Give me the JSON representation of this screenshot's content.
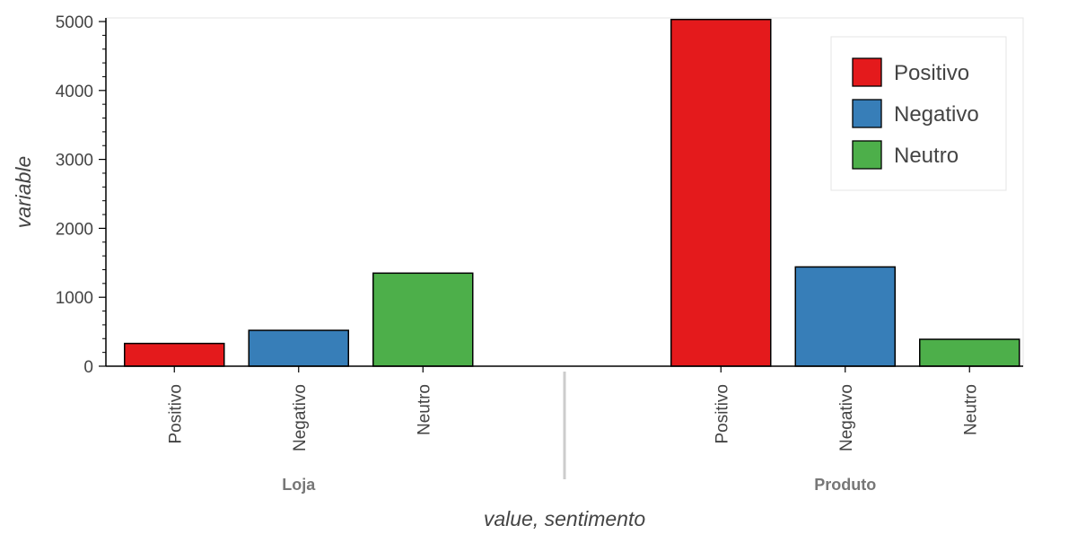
{
  "chart_data": {
    "type": "bar",
    "title": "",
    "xlabel": "value, sentimento",
    "ylabel": "variable",
    "ylim": [
      0,
      5000
    ],
    "yticks": [
      "0",
      "1000",
      "2000",
      "3000",
      "4000",
      "5000"
    ],
    "grid": false,
    "legend_position": "top-right",
    "groups": [
      {
        "name": "Loja",
        "categories": [
          "Positivo",
          "Negativo",
          "Neutro"
        ],
        "values": [
          330,
          520,
          1350
        ]
      },
      {
        "name": "Produto",
        "categories": [
          "Positivo",
          "Negativo",
          "Neutro"
        ],
        "values": [
          5030,
          1440,
          390
        ]
      }
    ],
    "legend": [
      {
        "label": "Positivo",
        "color": "#e41a1c"
      },
      {
        "label": "Negativo",
        "color": "#377eb8"
      },
      {
        "label": "Neutro",
        "color": "#4daf4a"
      }
    ]
  }
}
